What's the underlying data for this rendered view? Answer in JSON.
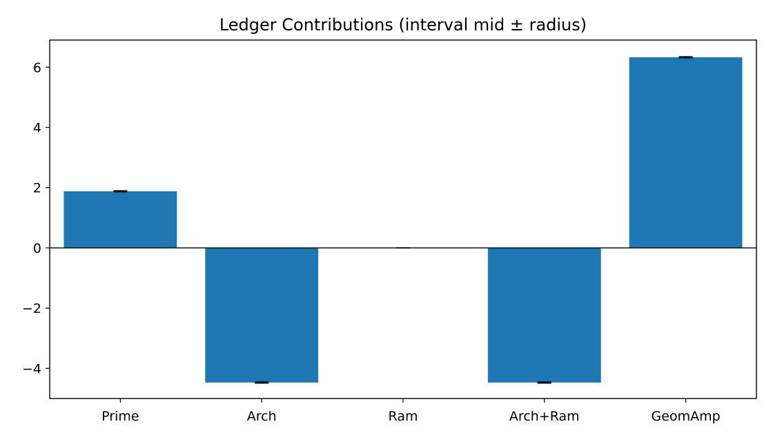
{
  "chart_data": {
    "type": "bar",
    "title": "Ledger Contributions (interval mid ± radius)",
    "xlabel": "",
    "ylabel": "",
    "categories": [
      "Prime",
      "Arch",
      "Ram",
      "Arch+Ram",
      "GeomAmp"
    ],
    "values": [
      1.88,
      -4.47,
      0.0,
      -4.47,
      6.33
    ],
    "errors": [
      0.02,
      0.02,
      0.0,
      0.02,
      0.02
    ],
    "ylim": [
      -5.0,
      6.9
    ],
    "yticks": [
      6,
      4,
      2,
      0,
      -2,
      -4
    ],
    "ytick_labels": [
      "6",
      "4",
      "2",
      "0",
      "−2",
      "−4"
    ],
    "zero_line": true,
    "grid": false,
    "legend": "none",
    "bar_color": "#1f77b4",
    "errorbar_color": "#000000"
  }
}
